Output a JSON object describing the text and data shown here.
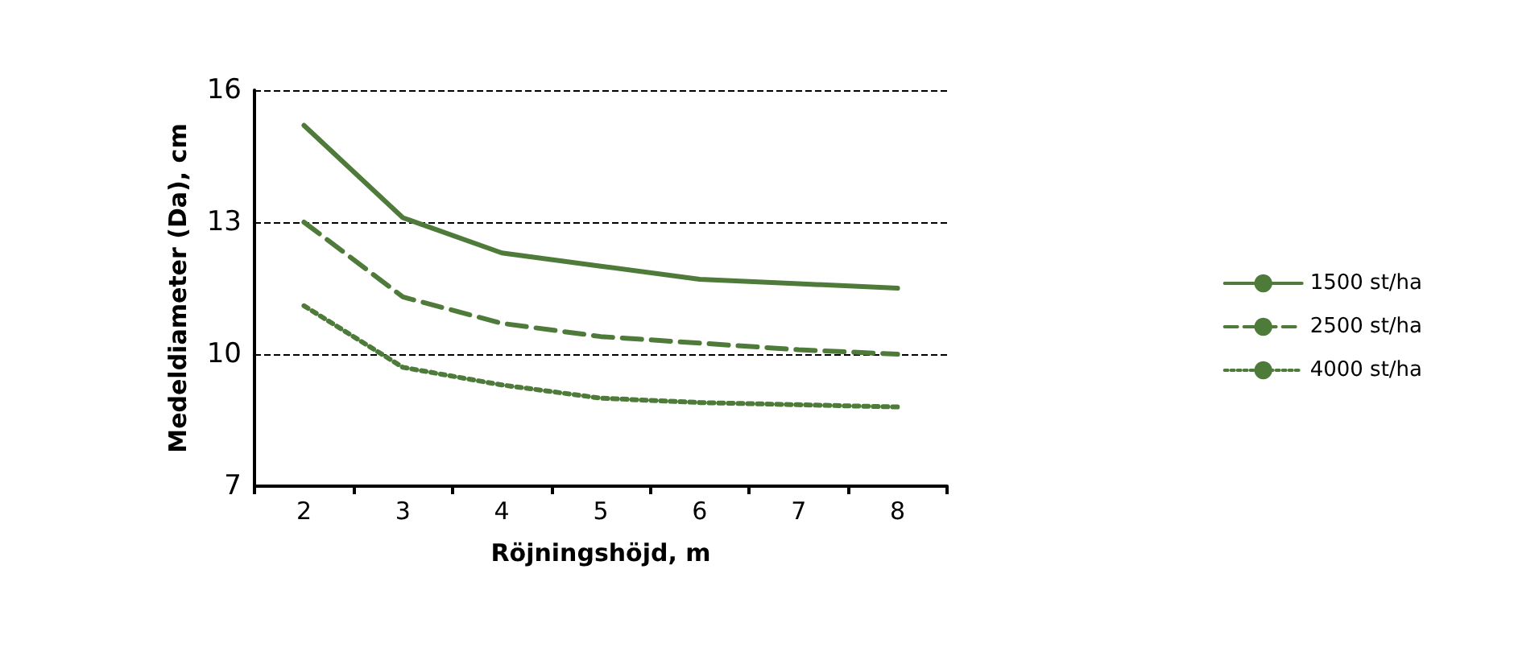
{
  "chart_data": {
    "type": "line",
    "xlabel": "Röjningshöjd, m",
    "ylabel": "Medeldiameter (Da), cm",
    "categories": [
      "2",
      "3",
      "4",
      "5",
      "6",
      "7",
      "8"
    ],
    "series": [
      {
        "name": "1500 st/ha",
        "color": "#4e7a3a",
        "line_style": "solid",
        "values": [
          15.2,
          13.1,
          12.3,
          12.0,
          11.7,
          11.6,
          11.5
        ]
      },
      {
        "name": "2500 st/ha",
        "color": "#4e7a3a",
        "line_style": "dashed",
        "values": [
          13.0,
          11.3,
          10.7,
          10.4,
          10.25,
          10.1,
          10.0
        ]
      },
      {
        "name": "4000 st/ha",
        "color": "#4e7a3a",
        "line_style": "dotted",
        "values": [
          11.1,
          9.7,
          9.3,
          9.0,
          8.9,
          8.85,
          8.8
        ]
      }
    ],
    "ylim": [
      7,
      16
    ],
    "yticks": [
      7,
      10,
      13,
      16
    ],
    "grid": "y",
    "legend": "right",
    "marker": "none"
  }
}
